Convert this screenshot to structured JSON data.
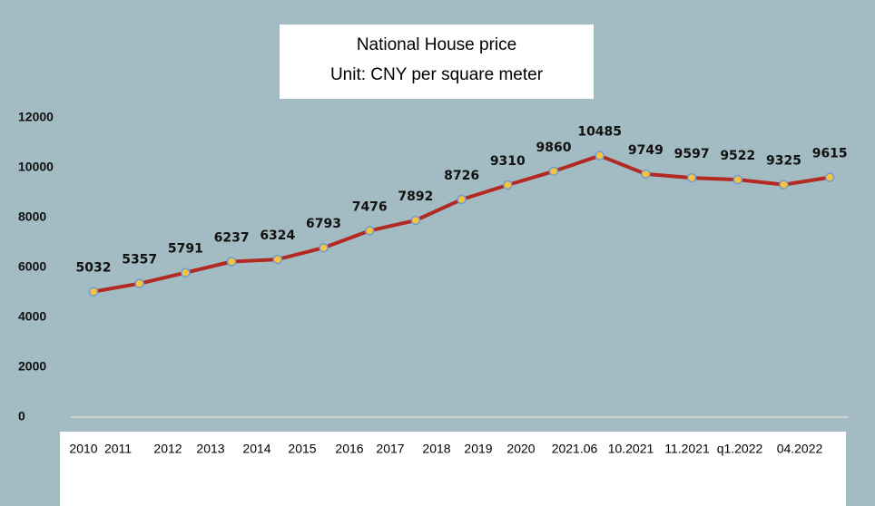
{
  "chart_data": {
    "type": "line",
    "title": [
      "National House price",
      "Unit: CNY per square meter"
    ],
    "categories": [
      "2010",
      "2011",
      "2012",
      "2013",
      "2014",
      "2015",
      "2016",
      "2017",
      "2018",
      "2019",
      "2020",
      "2021.06",
      "10.2021",
      "11.2021",
      "q1.2022",
      "04.2022",
      null
    ],
    "series": [
      {
        "color": "#b22a22",
        "marker_color": "#f5c342",
        "values": [
          5032,
          5357,
          5791,
          6237,
          6324,
          6793,
          7476,
          7892,
          8726,
          9310,
          9860,
          10485,
          9749,
          9597,
          9522,
          9325,
          9615
        ]
      }
    ],
    "ylim": [
      0,
      12000
    ],
    "yticks": [
      0,
      2000,
      4000,
      6000,
      8000,
      10000,
      12000
    ],
    "grid": false
  }
}
